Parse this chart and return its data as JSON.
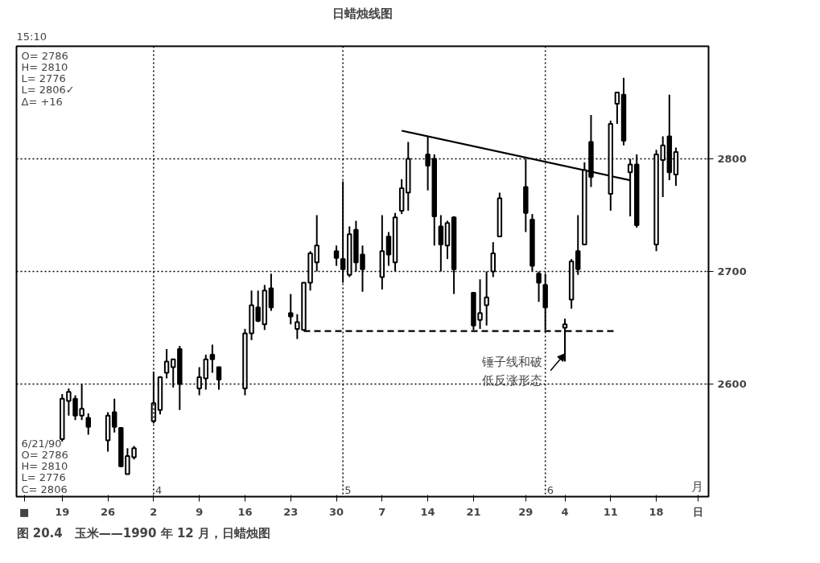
{
  "chart_data": {
    "type": "candlestick",
    "title": "日蜡烛线图",
    "xlim": [
      "1990-03-12",
      "1990-06-26"
    ],
    "ylim": [
      2500,
      2900
    ],
    "xticks": [
      {
        "value": "1990-03-19",
        "label": "19"
      },
      {
        "value": "1990-03-26",
        "label": "26"
      },
      {
        "value": "1990-04-02",
        "label": "2"
      },
      {
        "value": "1990-04-09",
        "label": "9"
      },
      {
        "value": "1990-04-16",
        "label": "16"
      },
      {
        "value": "1990-04-23",
        "label": "23"
      },
      {
        "value": "1990-04-30",
        "label": "30"
      },
      {
        "value": "1990-05-07",
        "label": "7"
      },
      {
        "value": "1990-05-14",
        "label": "14"
      },
      {
        "value": "1990-05-21",
        "label": "21"
      },
      {
        "value": "1990-05-29",
        "label": "29"
      },
      {
        "value": "1990-06-04",
        "label": "4"
      },
      {
        "value": "1990-06-11",
        "label": "11"
      },
      {
        "value": "1990-06-18",
        "label": "18"
      }
    ],
    "yticks": [
      2600,
      2700,
      2800
    ],
    "grid": "y",
    "ref_lines": [
      {
        "axis": "x",
        "value": "1990-04-02",
        "label": "4",
        "line_style": "dotted"
      },
      {
        "axis": "x",
        "value": "1990-05-01",
        "label": "5",
        "line_style": "dotted"
      },
      {
        "axis": "x",
        "value": "1990-06-01",
        "label": "6",
        "line_style": "dotted"
      }
    ],
    "series": [
      {
        "color": "#000000",
        "x": [
          "1990-03-19",
          "1990-03-20",
          "1990-03-21",
          "1990-03-22",
          "1990-03-23",
          "1990-03-26",
          "1990-03-27",
          "1990-03-28",
          "1990-03-29",
          "1990-03-30",
          "1990-04-02",
          "1990-04-03",
          "1990-04-04",
          "1990-04-05",
          "1990-04-06",
          "1990-04-09",
          "1990-04-10",
          "1990-04-11",
          "1990-04-12",
          "1990-04-16",
          "1990-04-17",
          "1990-04-18",
          "1990-04-19",
          "1990-04-20",
          "1990-04-23",
          "1990-04-24",
          "1990-04-25",
          "1990-04-26",
          "1990-04-27",
          "1990-04-30",
          "1990-05-01",
          "1990-05-02",
          "1990-05-03",
          "1990-05-04",
          "1990-05-07",
          "1990-05-08",
          "1990-05-09",
          "1990-05-10",
          "1990-05-11",
          "1990-05-14",
          "1990-05-15",
          "1990-05-16",
          "1990-05-17",
          "1990-05-18",
          "1990-05-21",
          "1990-05-22",
          "1990-05-23",
          "1990-05-24",
          "1990-05-25",
          "1990-05-29",
          "1990-05-30",
          "1990-05-31",
          "1990-06-01",
          "1990-06-04",
          "1990-06-05",
          "1990-06-06",
          "1990-06-07",
          "1990-06-08",
          "1990-06-11",
          "1990-06-12",
          "1990-06-13",
          "1990-06-14",
          "1990-06-15",
          "1990-06-18",
          "1990-06-19",
          "1990-06-20",
          "1990-06-21"
        ],
        "ohlc": [
          [
            2551,
            2591,
            2549,
            2587
          ],
          [
            2585,
            2596,
            2572,
            2593
          ],
          [
            2587,
            2590,
            2568,
            2572
          ],
          [
            2572,
            2600,
            2568,
            2578
          ],
          [
            2570,
            2574,
            2555,
            2562
          ],
          [
            2550,
            2575,
            2540,
            2572
          ],
          [
            2575,
            2587,
            2557,
            2562
          ],
          [
            2561,
            2561,
            2526,
            2527
          ],
          [
            2520,
            2543,
            2520,
            2536
          ],
          [
            2535,
            2545,
            2533,
            2543
          ],
          [
            2567,
            2611,
            2565,
            2583
          ],
          [
            2577,
            2607,
            2573,
            2606
          ],
          [
            2610,
            2631,
            2605,
            2620
          ],
          [
            2615,
            2622,
            2597,
            2622
          ],
          [
            2631,
            2634,
            2577,
            2600
          ],
          [
            2596,
            2615,
            2590,
            2606
          ],
          [
            2605,
            2626,
            2595,
            2622
          ],
          [
            2626,
            2635,
            2610,
            2622
          ],
          [
            2615,
            2615,
            2595,
            2604
          ],
          [
            2596,
            2649,
            2590,
            2645
          ],
          [
            2645,
            2683,
            2639,
            2670
          ],
          [
            2668,
            2683,
            2655,
            2656
          ],
          [
            2653,
            2688,
            2648,
            2683
          ],
          [
            2685,
            2698,
            2665,
            2668
          ],
          [
            2663,
            2680,
            2653,
            2660
          ],
          [
            2649,
            2662,
            2640,
            2655
          ],
          [
            2648,
            2690,
            2648,
            2690
          ],
          [
            2690,
            2718,
            2683,
            2716
          ],
          [
            2708,
            2750,
            2700,
            2723
          ],
          [
            2718,
            2723,
            2705,
            2712
          ],
          [
            2711,
            2780,
            2690,
            2702
          ],
          [
            2697,
            2740,
            2695,
            2733
          ],
          [
            2737,
            2745,
            2700,
            2708
          ],
          [
            2715,
            2723,
            2682,
            2702
          ],
          [
            2695,
            2750,
            2684,
            2718
          ],
          [
            2731,
            2735,
            2705,
            2715
          ],
          [
            2708,
            2752,
            2700,
            2748
          ],
          [
            2754,
            2782,
            2751,
            2774
          ],
          [
            2770,
            2815,
            2754,
            2800
          ],
          [
            2804,
            2820,
            2772,
            2794
          ],
          [
            2800,
            2804,
            2723,
            2749
          ],
          [
            2740,
            2750,
            2700,
            2724
          ],
          [
            2723,
            2745,
            2711,
            2743
          ],
          [
            2748,
            2749,
            2680,
            2702
          ],
          [
            2681,
            2681,
            2648,
            2652
          ],
          [
            2657,
            2693,
            2649,
            2663
          ],
          [
            2670,
            2700,
            2652,
            2677
          ],
          [
            2700,
            2726,
            2695,
            2716
          ],
          [
            2731,
            2770,
            2731,
            2765
          ],
          [
            2775,
            2800,
            2735,
            2752
          ],
          [
            2746,
            2751,
            2700,
            2705
          ],
          [
            2698,
            2700,
            2673,
            2690
          ],
          [
            2688,
            2698,
            2648,
            2668
          ],
          [
            2650,
            2658,
            2620,
            2653
          ],
          [
            2675,
            2711,
            2667,
            2709
          ],
          [
            2718,
            2750,
            2697,
            2702
          ],
          [
            2724,
            2797,
            2724,
            2790
          ],
          [
            2815,
            2839,
            2775,
            2784
          ],
          [
            2769,
            2834,
            2754,
            2831
          ],
          [
            2849,
            2859,
            2831,
            2859
          ],
          [
            2857,
            2872,
            2812,
            2816
          ],
          [
            2788,
            2800,
            2749,
            2795
          ],
          [
            2795,
            2804,
            2739,
            2741
          ],
          [
            2724,
            2808,
            2718,
            2804
          ],
          [
            2799,
            2820,
            2766,
            2812
          ],
          [
            2820,
            2857,
            2781,
            2788
          ],
          [
            2786,
            2810,
            2776,
            2806
          ]
        ]
      },
      {
        "type": "line",
        "color": "#000000",
        "x": [
          "1990-05-10",
          "1990-06-14"
        ],
        "values": [
          2825,
          2781
        ],
        "line_style": "solid"
      },
      {
        "type": "line",
        "color": "#000000",
        "x": [
          "1990-04-25",
          "1990-06-12"
        ],
        "values": [
          2647,
          2647
        ],
        "line_style": "dashed"
      }
    ],
    "annotations": [
      "15:10",
      "O= 2786\nH= 2810\nL= 2776\nL= 2806✓\nΔ=   +16",
      "6/21/90\nO= 2786\nH= 2810\nL= 2776\nC= 2806",
      "■",
      "月",
      "日",
      "图 20.4　玉米——1990 年 12 月，日蜡烛图",
      {
        "text": "锤子线和破低反涨形态",
        "x": "1990-06-04",
        "y": 2627
      }
    ]
  }
}
